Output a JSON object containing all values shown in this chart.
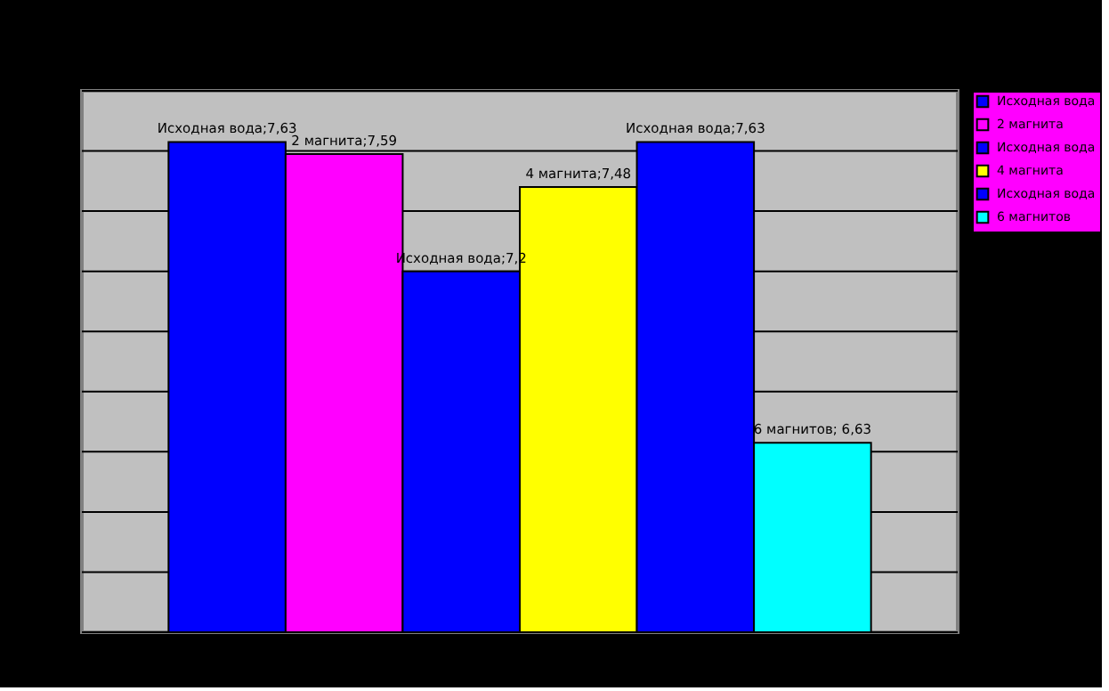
{
  "chart_data": {
    "type": "bar",
    "categories": [
      null
    ],
    "series": [
      {
        "name": "Исходная вода",
        "color": "#0000ff",
        "values": [
          7.63
        ],
        "value_labels": [
          "Исходная вода;7,63"
        ]
      },
      {
        "name": "2 магнита",
        "color": "#ff00ff",
        "values": [
          7.59
        ],
        "value_labels": [
          "2 магнита;7,59"
        ]
      },
      {
        "name": "Исходная вода",
        "color": "#0000ff",
        "values": [
          7.2
        ],
        "value_labels": [
          "Исходная вода;7,2"
        ]
      },
      {
        "name": "4 магнита",
        "color": "#ffff00",
        "values": [
          7.48
        ],
        "value_labels": [
          "4 магнита;7,48"
        ]
      },
      {
        "name": "Исходная вода",
        "color": "#0000ff",
        "values": [
          7.63
        ],
        "value_labels": [
          "Исходная вода;7,63"
        ]
      },
      {
        "name": "6 магнитов",
        "color": "#00ffff",
        "values": [
          6.63
        ],
        "value_labels": [
          "6 магнитов; 6,63"
        ]
      }
    ],
    "ylim": [
      6,
      7.8
    ],
    "yticks": [
      {
        "value": 6.0,
        "label": null
      },
      {
        "value": 6.2,
        "label": null
      },
      {
        "value": 6.4,
        "label": null
      },
      {
        "value": 6.6,
        "label": null
      },
      {
        "value": 6.8,
        "label": null
      },
      {
        "value": 7.0,
        "label": null
      },
      {
        "value": 7.2,
        "label": null
      },
      {
        "value": 7.4,
        "label": null
      },
      {
        "value": 7.6,
        "label": null
      },
      {
        "value": 7.8,
        "label": null
      }
    ],
    "tick_labels": false,
    "grid": "y",
    "legend": "right"
  }
}
